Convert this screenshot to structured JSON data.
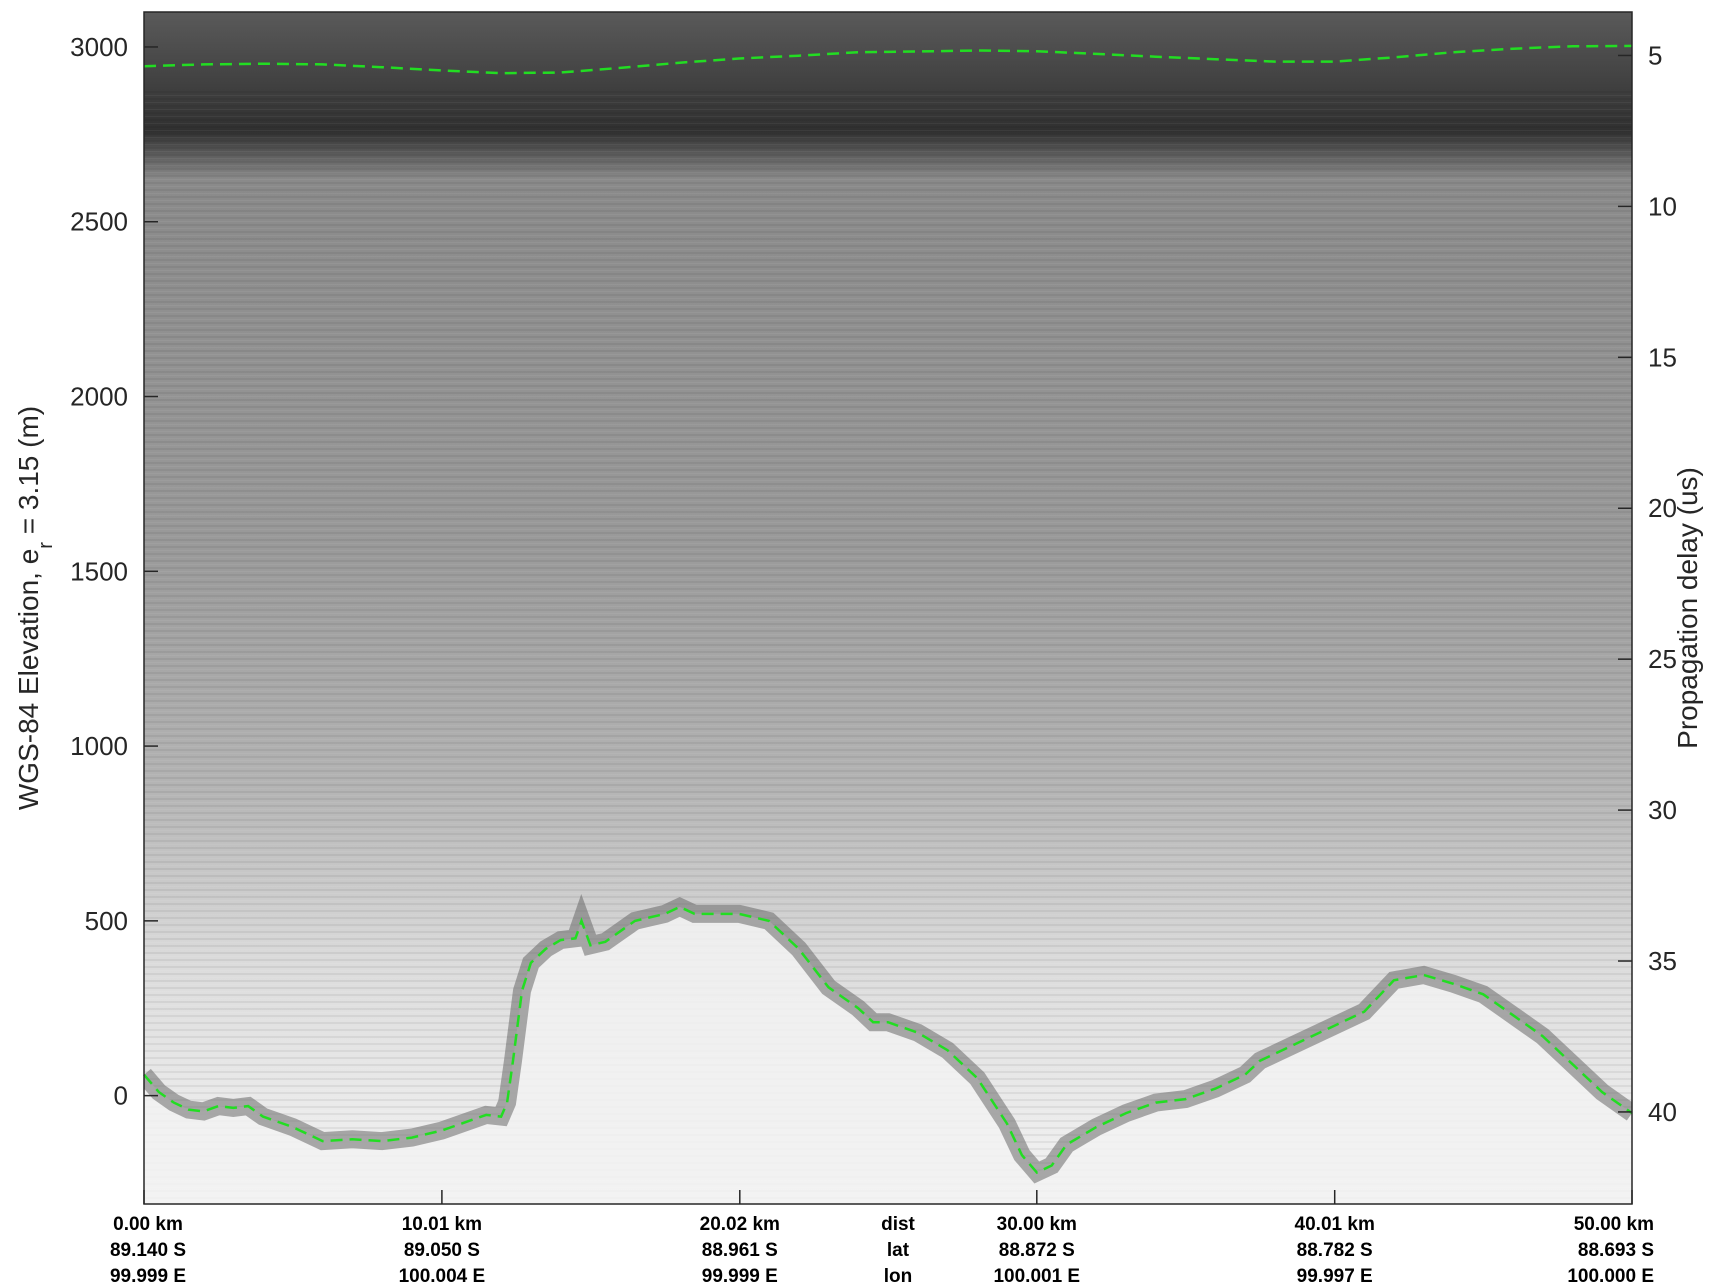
{
  "chart_data": {
    "type": "radargram",
    "title": "",
    "ylabel_left": "WGS-84 Elevation, e",
    "ylabel_left_subscript": "r",
    "ylabel_left_suffix": " = 3.15 (m)",
    "ylabel_right": "Propagation delay (us)",
    "ylim_left": [
      -310,
      3100
    ],
    "ylim_right": [
      43.05,
      3.56
    ],
    "left_ticks": [
      3000,
      2500,
      2000,
      1500,
      1000,
      500,
      0
    ],
    "right_ticks": [
      5,
      10,
      15,
      20,
      25,
      30,
      35,
      40
    ],
    "xlim": [
      0,
      50
    ],
    "bottom_columns": [
      {
        "x": 0.0,
        "dist": "0.00 km",
        "lat": "89.140 S",
        "lon": "99.999 E"
      },
      {
        "x": 10.01,
        "dist": "10.01 km",
        "lat": "89.050 S",
        "lon": "100.004 E"
      },
      {
        "x": 20.02,
        "dist": "20.02 km",
        "lat": "88.961 S",
        "lon": "99.999 E"
      },
      {
        "x": 30.0,
        "dist": "30.00 km",
        "lat": "88.872 S",
        "lon": "100.001 E"
      },
      {
        "x": 40.01,
        "dist": "40.01 km",
        "lat": "88.782 S",
        "lon": "99.997 E"
      },
      {
        "x": 50.0,
        "dist": "50.00 km",
        "lat": "88.693 S",
        "lon": "100.000 E"
      }
    ],
    "bottom_row_names": {
      "dist": "dist",
      "lat": "lat",
      "lon": "lon"
    },
    "bottom_row_names_x": 25.0,
    "surface_pick": {
      "color": "#22dd22",
      "x": [
        0,
        2,
        4,
        6,
        8,
        10,
        12,
        14,
        16,
        18,
        20,
        22,
        24,
        26,
        28,
        30,
        32,
        34,
        36,
        38,
        40,
        42,
        44,
        46,
        48,
        50
      ],
      "y": [
        2945,
        2950,
        2952,
        2950,
        2942,
        2933,
        2925,
        2927,
        2940,
        2955,
        2967,
        2975,
        2985,
        2987,
        2990,
        2988,
        2980,
        2972,
        2965,
        2958,
        2958,
        2970,
        2985,
        2995,
        3002,
        3003
      ]
    },
    "bed_pick": {
      "color": "#22dd22",
      "x": [
        0,
        0.5,
        1,
        1.5,
        2,
        2.5,
        3,
        3.5,
        4,
        5,
        6,
        7,
        8,
        9,
        10,
        11,
        11.5,
        12,
        12.2,
        12.4,
        12.7,
        13,
        13.5,
        14,
        14.5,
        14.7,
        15,
        15.5,
        16,
        16.5,
        17,
        17.5,
        18,
        18.5,
        19,
        20,
        21,
        22,
        23,
        24,
        24.5,
        25,
        26,
        27,
        28,
        29,
        29.5,
        30,
        30.5,
        31,
        32,
        33,
        34,
        35,
        36,
        37,
        37.5,
        38,
        39,
        40,
        41,
        42,
        43,
        44,
        45,
        46,
        47,
        48,
        49,
        49.5,
        50
      ],
      "y": [
        60,
        10,
        -20,
        -40,
        -45,
        -30,
        -35,
        -30,
        -60,
        -90,
        -130,
        -125,
        -130,
        -120,
        -100,
        -70,
        -55,
        -60,
        -20,
        100,
        300,
        380,
        420,
        445,
        450,
        500,
        430,
        440,
        470,
        500,
        510,
        520,
        540,
        520,
        520,
        520,
        500,
        420,
        310,
        250,
        210,
        210,
        180,
        130,
        50,
        -80,
        -170,
        -220,
        -200,
        -140,
        -90,
        -50,
        -20,
        -10,
        20,
        60,
        100,
        120,
        160,
        200,
        240,
        330,
        345,
        320,
        290,
        230,
        170,
        90,
        10,
        -20,
        -50
      ]
    }
  }
}
